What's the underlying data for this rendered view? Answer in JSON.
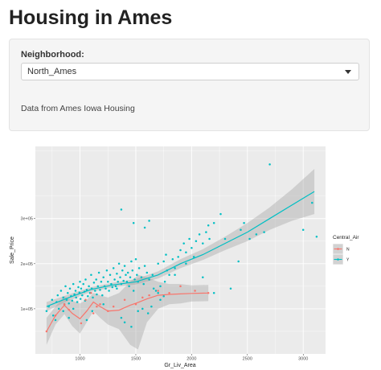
{
  "header": {
    "title": "Housing in Ames"
  },
  "controls": {
    "neighborhood_label": "Neighborhood:",
    "neighborhood_value": "North_Ames",
    "note": "Data from Ames Iowa Housing"
  },
  "colors": {
    "N": "#F8766D",
    "Y": "#00BFC4",
    "panel": "#EBEBEB",
    "grid": "#FFFFFF",
    "ribbon": "#999999"
  },
  "chart_data": {
    "type": "scatter",
    "xlabel": "Gr_Liv_Area",
    "ylabel": "Sale_Price",
    "xlim": [
      600,
      3200
    ],
    "ylim": [
      0,
      460000
    ],
    "x_ticks": [
      1000,
      1500,
      2000,
      2500,
      3000
    ],
    "x_tick_labels": [
      "1000",
      "1500",
      "2000",
      "2500",
      "3000"
    ],
    "y_ticks": [
      100000,
      200000,
      300000
    ],
    "y_tick_labels": [
      "1e+05",
      "2e+05",
      "3e+05"
    ],
    "grid": true,
    "legend": {
      "title": "Central_Air",
      "position": "right",
      "items": [
        "N",
        "Y"
      ]
    },
    "series": [
      {
        "name": "Y",
        "points": [
          [
            700,
            95000
          ],
          [
            720,
            105000
          ],
          [
            750,
            120000
          ],
          [
            760,
            85000
          ],
          [
            790,
            115000
          ],
          [
            800,
            130000
          ],
          [
            810,
            100000
          ],
          [
            830,
            140000
          ],
          [
            850,
            125000
          ],
          [
            860,
            110000
          ],
          [
            870,
            150000
          ],
          [
            880,
            120000
          ],
          [
            890,
            135000
          ],
          [
            900,
            112000
          ],
          [
            910,
            145000
          ],
          [
            920,
            128000
          ],
          [
            930,
            118000
          ],
          [
            940,
            155000
          ],
          [
            950,
            132000
          ],
          [
            960,
            140000
          ],
          [
            965,
            125000
          ],
          [
            975,
            115000
          ],
          [
            985,
            148000
          ],
          [
            995,
            136000
          ],
          [
            1000,
            160000
          ],
          [
            1005,
            122000
          ],
          [
            1010,
            145000
          ],
          [
            1020,
            130000
          ],
          [
            1030,
            155000
          ],
          [
            1040,
            138000
          ],
          [
            1045,
            118000
          ],
          [
            1050,
            165000
          ],
          [
            1060,
            142000
          ],
          [
            1070,
            128000
          ],
          [
            1080,
            150000
          ],
          [
            1090,
            135000
          ],
          [
            1100,
            175000
          ],
          [
            1105,
            145000
          ],
          [
            1115,
            125000
          ],
          [
            1125,
            158000
          ],
          [
            1135,
            140000
          ],
          [
            1145,
            165000
          ],
          [
            1150,
            132000
          ],
          [
            1160,
            150000
          ],
          [
            1170,
            180000
          ],
          [
            1180,
            142000
          ],
          [
            1190,
            160000
          ],
          [
            1200,
            130000
          ],
          [
            1210,
            170000
          ],
          [
            1220,
            150000
          ],
          [
            1230,
            145000
          ],
          [
            1240,
            185000
          ],
          [
            1250,
            160000
          ],
          [
            1260,
            140000
          ],
          [
            1270,
            175000
          ],
          [
            1280,
            155000
          ],
          [
            1290,
            148000
          ],
          [
            1300,
            190000
          ],
          [
            1310,
            165000
          ],
          [
            1320,
            150000
          ],
          [
            1330,
            178000
          ],
          [
            1340,
            160000
          ],
          [
            1350,
            200000
          ],
          [
            1360,
            170000
          ],
          [
            1370,
            155000
          ],
          [
            1380,
            185000
          ],
          [
            1390,
            162000
          ],
          [
            1400,
            195000
          ],
          [
            1410,
            175000
          ],
          [
            1420,
            160000
          ],
          [
            1430,
            180000
          ],
          [
            1440,
            150000
          ],
          [
            1450,
            170000
          ],
          [
            1460,
            205000
          ],
          [
            1470,
            185000
          ],
          [
            1480,
            140000
          ],
          [
            1490,
            165000
          ],
          [
            1500,
            210000
          ],
          [
            1510,
            175000
          ],
          [
            1520,
            160000
          ],
          [
            1530,
            190000
          ],
          [
            1550,
            170000
          ],
          [
            1570,
            155000
          ],
          [
            1580,
            195000
          ],
          [
            1600,
            180000
          ],
          [
            1620,
            165000
          ],
          [
            1650,
            175000
          ],
          [
            1660,
            145000
          ],
          [
            1700,
            200000
          ],
          [
            1720,
            120000
          ],
          [
            1750,
            205000
          ],
          [
            1780,
            185000
          ],
          [
            1800,
            175000
          ],
          [
            1830,
            210000
          ],
          [
            1850,
            190000
          ],
          [
            1880,
            215000
          ],
          [
            1900,
            230000
          ],
          [
            1930,
            245000
          ],
          [
            1950,
            225000
          ],
          [
            1980,
            255000
          ],
          [
            2000,
            235000
          ],
          [
            2040,
            250000
          ],
          [
            2070,
            265000
          ],
          [
            2100,
            245000
          ],
          [
            2130,
            270000
          ],
          [
            2160,
            255000
          ],
          [
            2200,
            290000
          ],
          [
            2260,
            310000
          ],
          [
            2420,
            205000
          ],
          [
            2470,
            290000
          ],
          [
            2520,
            255000
          ],
          [
            2580,
            265000
          ],
          [
            2650,
            270000
          ],
          [
            2700,
            420000
          ],
          [
            3000,
            275000
          ],
          [
            3080,
            335000
          ],
          [
            3120,
            260000
          ],
          [
            1330,
            145000
          ],
          [
            1370,
            80000
          ],
          [
            1400,
            70000
          ],
          [
            1460,
            60000
          ],
          [
            1520,
            95000
          ],
          [
            1560,
            100000
          ],
          [
            1610,
            90000
          ],
          [
            1640,
            105000
          ],
          [
            1680,
            140000
          ],
          [
            1720,
            150000
          ],
          [
            1760,
            160000
          ],
          [
            1210,
            110000
          ],
          [
            1110,
            95000
          ],
          [
            1060,
            75000
          ],
          [
            940,
            100000
          ],
          [
            900,
            80000
          ],
          [
            850,
            95000
          ],
          [
            780,
            75000
          ],
          [
            1370,
            320000
          ],
          [
            1480,
            290000
          ],
          [
            1580,
            280000
          ],
          [
            1620,
            295000
          ],
          [
            1850,
            175000
          ],
          [
            1950,
            200000
          ],
          [
            1770,
            220000
          ],
          [
            2020,
            215000
          ],
          [
            2100,
            170000
          ],
          [
            2200,
            135000
          ],
          [
            2350,
            145000
          ],
          [
            2440,
            275000
          ],
          [
            2300,
            255000
          ],
          [
            2150,
            285000
          ],
          [
            1700,
            135000
          ],
          [
            1750,
            128000
          ]
        ],
        "smooth": [
          [
            700,
            105000
          ],
          [
            900,
            125000
          ],
          [
            1100,
            143000
          ],
          [
            1300,
            153000
          ],
          [
            1500,
            160000
          ],
          [
            1700,
            175000
          ],
          [
            1900,
            200000
          ],
          [
            2100,
            220000
          ],
          [
            2300,
            245000
          ],
          [
            2500,
            270000
          ],
          [
            2700,
            300000
          ],
          [
            2900,
            330000
          ],
          [
            3100,
            360000
          ]
        ],
        "ribbon_upper": [
          [
            700,
            115000
          ],
          [
            900,
            132000
          ],
          [
            1100,
            148000
          ],
          [
            1300,
            158000
          ],
          [
            1500,
            166000
          ],
          [
            1700,
            183000
          ],
          [
            1900,
            210000
          ],
          [
            2100,
            232000
          ],
          [
            2300,
            260000
          ],
          [
            2500,
            290000
          ],
          [
            2700,
            325000
          ],
          [
            2900,
            365000
          ],
          [
            3100,
            410000
          ]
        ],
        "ribbon_lower": [
          [
            700,
            95000
          ],
          [
            900,
            118000
          ],
          [
            1100,
            138000
          ],
          [
            1300,
            148000
          ],
          [
            1500,
            154000
          ],
          [
            1700,
            167000
          ],
          [
            1900,
            190000
          ],
          [
            2100,
            208000
          ],
          [
            2300,
            230000
          ],
          [
            2500,
            250000
          ],
          [
            2700,
            275000
          ],
          [
            2900,
            295000
          ],
          [
            3100,
            310000
          ]
        ]
      },
      {
        "name": "N",
        "points": [
          [
            700,
            50000
          ],
          [
            780,
            85000
          ],
          [
            860,
            110000
          ],
          [
            900,
            98000
          ],
          [
            1010,
            68000
          ],
          [
            1050,
            120000
          ],
          [
            1100,
            135000
          ],
          [
            1120,
            90000
          ],
          [
            1150,
            105000
          ],
          [
            1180,
            110000
          ],
          [
            1250,
            95000
          ],
          [
            1300,
            105000
          ],
          [
            1400,
            120000
          ],
          [
            1500,
            110000
          ],
          [
            1560,
            125000
          ],
          [
            1620,
            130000
          ],
          [
            1700,
            140000
          ],
          [
            1800,
            135000
          ],
          [
            1900,
            150000
          ],
          [
            2030,
            140000
          ],
          [
            2150,
            135000
          ]
        ],
        "smooth": [
          [
            700,
            50000
          ],
          [
            780,
            85000
          ],
          [
            860,
            108000
          ],
          [
            930,
            90000
          ],
          [
            1000,
            78000
          ],
          [
            1060,
            95000
          ],
          [
            1120,
            115000
          ],
          [
            1180,
            105000
          ],
          [
            1250,
            95000
          ],
          [
            1350,
            97000
          ],
          [
            1450,
            108000
          ],
          [
            1520,
            114000
          ],
          [
            1600,
            122000
          ],
          [
            1700,
            130000
          ],
          [
            1800,
            132000
          ],
          [
            1900,
            133000
          ],
          [
            2000,
            134000
          ],
          [
            2150,
            135000
          ]
        ],
        "ribbon_upper": [
          [
            700,
            80000
          ],
          [
            780,
            105000
          ],
          [
            860,
            128000
          ],
          [
            930,
            118000
          ],
          [
            1000,
            112000
          ],
          [
            1060,
            120000
          ],
          [
            1120,
            135000
          ],
          [
            1180,
            130000
          ],
          [
            1250,
            125000
          ],
          [
            1350,
            135000
          ],
          [
            1450,
            160000
          ],
          [
            1520,
            175000
          ],
          [
            1600,
            170000
          ],
          [
            1700,
            160000
          ],
          [
            1800,
            155000
          ],
          [
            1900,
            155000
          ],
          [
            2000,
            152000
          ],
          [
            2150,
            153000
          ]
        ],
        "ribbon_lower": [
          [
            700,
            20000
          ],
          [
            780,
            65000
          ],
          [
            860,
            88000
          ],
          [
            930,
            62000
          ],
          [
            1000,
            45000
          ],
          [
            1060,
            70000
          ],
          [
            1120,
            95000
          ],
          [
            1180,
            80000
          ],
          [
            1250,
            65000
          ],
          [
            1350,
            55000
          ],
          [
            1450,
            20000
          ],
          [
            1520,
            10000
          ],
          [
            1600,
            70000
          ],
          [
            1700,
            100000
          ],
          [
            1800,
            110000
          ],
          [
            1900,
            112000
          ],
          [
            2000,
            116000
          ],
          [
            2150,
            117000
          ]
        ]
      }
    ]
  }
}
